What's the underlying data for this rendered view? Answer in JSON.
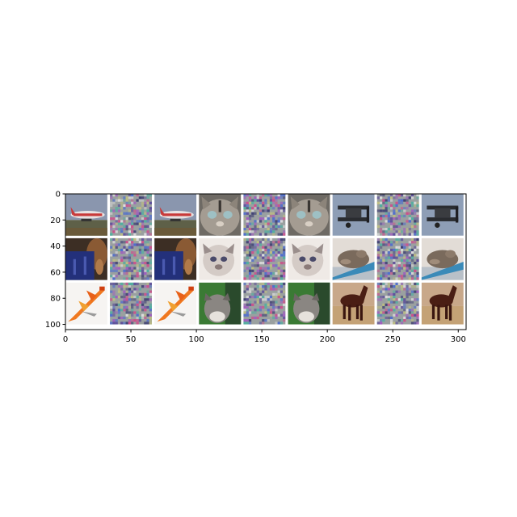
{
  "chart_data": {
    "type": "heatmap",
    "description_kind": "image grid (imshow of CIFAR-10 samples and adversarial perturbations)",
    "xlim": [
      0,
      306
    ],
    "ylim": [
      104,
      0
    ],
    "x_ticks": [
      0,
      50,
      100,
      150,
      200,
      250,
      300
    ],
    "y_ticks": [
      0,
      20,
      40,
      60,
      80,
      100
    ],
    "grid": false,
    "rows": 3,
    "cols": 9,
    "tile_size": 32,
    "gap": 2,
    "column_types": [
      "original",
      "perturbation",
      "adversarial",
      "original",
      "perturbation",
      "adversarial",
      "original",
      "perturbation",
      "adversarial"
    ],
    "tiles": [
      [
        "airplane-icon",
        "noise-pattern",
        "airplane-icon",
        "cat-face-icon",
        "noise-pattern",
        "cat-face-icon",
        "biplane-icon",
        "noise-pattern",
        "biplane-icon"
      ],
      [
        "horse-blanket-icon",
        "noise-pattern",
        "horse-blanket-icon",
        "white-cat-icon",
        "noise-pattern",
        "white-cat-icon",
        "frog-icon",
        "noise-pattern",
        "frog-icon"
      ],
      [
        "orange-plane-icon",
        "noise-pattern",
        "orange-plane-icon",
        "tabby-cat-icon",
        "noise-pattern",
        "tabby-cat-icon",
        "brown-horse-icon",
        "noise-pattern",
        "brown-horse-icon"
      ]
    ],
    "colors": {
      "sky": "#7a8aa6",
      "noise_base": "#9aa0a0",
      "cat_gray": "#8a8884",
      "white_cat": "#d8d2d0",
      "grass": "#4a8a3a",
      "orange": "#f08a20",
      "horse_brown": "#5a2c1a",
      "blanket_blue": "#2a3a7a"
    }
  }
}
